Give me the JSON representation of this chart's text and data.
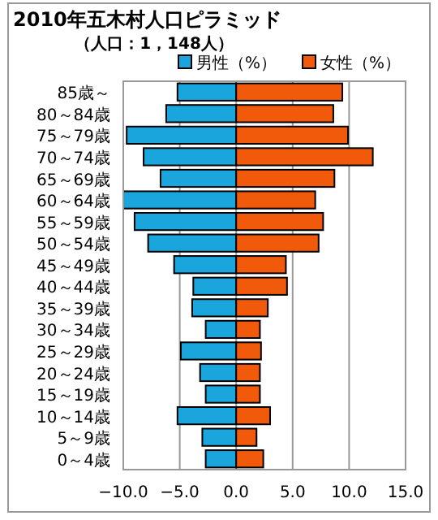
{
  "chart_data": {
    "type": "bar",
    "orientation": "horizontal",
    "stacked": true,
    "title": "2010年五木村人口ピラミッド",
    "subtitle": "（人口：1，148人）",
    "categories": [
      "85歳～",
      "80～84歳",
      "75～79歳",
      "70～74歳",
      "65～69歳",
      "60～64歳",
      "55～59歳",
      "50～54歳",
      "45～49歳",
      "40～44歳",
      "35～39歳",
      "30～34歳",
      "25～29歳",
      "20～24歳",
      "15～19歳",
      "10～14歳",
      "5～9歳",
      "0～4歳"
    ],
    "series": [
      {
        "name": "男性（%）",
        "color": "#1aa6dc",
        "values": [
          -5.2,
          -6.2,
          -9.7,
          -8.2,
          -6.7,
          -10.0,
          -9.0,
          -7.8,
          -5.5,
          -3.8,
          -3.9,
          -2.7,
          -4.9,
          -3.2,
          -2.7,
          -5.2,
          -3.0,
          -2.7
        ]
      },
      {
        "name": "女性（%）",
        "color": "#f05a0a",
        "values": [
          9.4,
          8.6,
          9.9,
          12.1,
          8.7,
          7.0,
          7.7,
          7.3,
          4.4,
          4.5,
          2.8,
          2.1,
          2.2,
          2.1,
          2.1,
          3.0,
          1.8,
          2.4
        ]
      }
    ],
    "xlim": [
      -10,
      15
    ],
    "xticks": [
      {
        "value": -10,
        "label": "−10.0"
      },
      {
        "value": -5,
        "label": "−5.0"
      },
      {
        "value": 0,
        "label": "0.0"
      },
      {
        "value": 5,
        "label": "5.0"
      },
      {
        "value": 10,
        "label": "10.0"
      },
      {
        "value": 15,
        "label": "15.0"
      }
    ],
    "grid": "x",
    "legend": "top"
  }
}
